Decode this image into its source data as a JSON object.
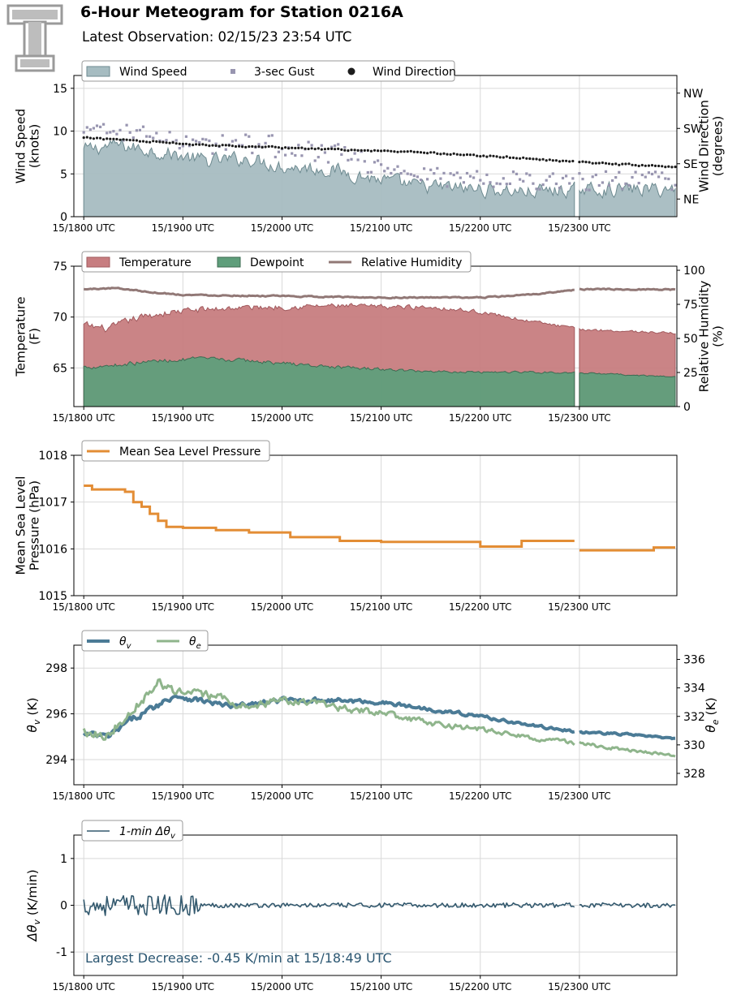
{
  "header": {
    "title": "6-Hour Meteogram for Station 0216A",
    "subtitle": "Latest Observation: 02/15/23 23:54 UTC"
  },
  "colors": {
    "wind_fill": "#a6bcc1",
    "wind_edge": "#6d8a90",
    "gust": "#9895b0",
    "direction": "#1c1c1c",
    "temperature_fill": "#c77d80",
    "temperature_edge": "#a25a5e",
    "dewpoint_fill": "#5f9e7b",
    "dewpoint_edge": "#3d6b52",
    "rh": "#917876",
    "pressure": "#e38d35",
    "theta_v": "#4b7b96",
    "theta_e": "#8fb58c",
    "delta": "#33596e",
    "annotation": "#2b5671"
  },
  "chart_data": [
    {
      "id": "wind",
      "type": "area",
      "x_ticks": [
        "15/1800 UTC",
        "15/1900 UTC",
        "15/2000 UTC",
        "15/2100 UTC",
        "15/2200 UTC",
        "15/2300 UTC"
      ],
      "ylabel": [
        "Wind Speed",
        "(knots)"
      ],
      "ylim": [
        0,
        16.5
      ],
      "yticks": [
        0,
        5,
        10,
        15
      ],
      "ylabel_right": [
        "Wind Direction",
        "(degrees)"
      ],
      "right_ylim": [
        0,
        360
      ],
      "right_ticks": [
        {
          "value": 45,
          "label": "NE"
        },
        {
          "value": 135,
          "label": "SE"
        },
        {
          "value": 225,
          "label": "SW"
        },
        {
          "value": 315,
          "label": "NW"
        }
      ],
      "legend": [
        "Wind Speed",
        "3-sec Gust",
        "Wind Direction"
      ],
      "gap_minutes": [
        298,
        299
      ],
      "series": [
        {
          "name": "Wind Speed",
          "style": "area",
          "anchors": [
            [
              0,
              7.8
            ],
            [
              20,
              8.4
            ],
            [
              45,
              7.6
            ],
            [
              75,
              6.5
            ],
            [
              100,
              6.8
            ],
            [
              120,
              5.9
            ],
            [
              150,
              5.5
            ],
            [
              180,
              4.3
            ],
            [
              200,
              3.6
            ],
            [
              240,
              3.2
            ],
            [
              270,
              2.9
            ],
            [
              300,
              3.2
            ],
            [
              360,
              3.2
            ]
          ],
          "noise": 1.3,
          "min": 0.4
        },
        {
          "name": "3-sec Gust",
          "style": "scatter",
          "anchors": [
            [
              0,
              9.6
            ],
            [
              20,
              10.2
            ],
            [
              45,
              9.2
            ],
            [
              75,
              8.5
            ],
            [
              100,
              8.6
            ],
            [
              120,
              7.8
            ],
            [
              150,
              7.4
            ],
            [
              180,
              5.8
            ],
            [
              200,
              5.1
            ],
            [
              240,
              4.4
            ],
            [
              270,
              4.1
            ],
            [
              300,
              4.2
            ],
            [
              360,
              4.3
            ]
          ],
          "noise": 1.7,
          "every": 2,
          "min": 0.5
        },
        {
          "name": "Wind Direction",
          "style": "dots",
          "axis": "right",
          "anchors": [
            [
              0,
              201
            ],
            [
              20,
              198
            ],
            [
              60,
              186
            ],
            [
              100,
              179
            ],
            [
              150,
              172
            ],
            [
              200,
              164
            ],
            [
              240,
              156
            ],
            [
              270,
              148
            ],
            [
              300,
              139
            ],
            [
              360,
              126
            ]
          ],
          "noise": 3,
          "every": 2
        }
      ]
    },
    {
      "id": "thermo",
      "type": "area",
      "x_ticks": [
        "15/1800 UTC",
        "15/1900 UTC",
        "15/2000 UTC",
        "15/2100 UTC",
        "15/2200 UTC",
        "15/2300 UTC"
      ],
      "ylabel": [
        "Temperature",
        "(F)"
      ],
      "ylim": [
        61.2,
        75
      ],
      "yticks": [
        65,
        70,
        75
      ],
      "ylabel_right": [
        "Relative Humidity",
        "(%)"
      ],
      "right_ylim": [
        0,
        103
      ],
      "right_ticks": [
        {
          "value": 0,
          "label": "0"
        },
        {
          "value": 25,
          "label": "25"
        },
        {
          "value": 50,
          "label": "50"
        },
        {
          "value": 75,
          "label": "75"
        },
        {
          "value": 100,
          "label": "100"
        }
      ],
      "legend": [
        "Temperature",
        "Dewpoint",
        "Relative Humidity"
      ],
      "gap_minutes": [
        298,
        299
      ],
      "series": [
        {
          "name": "Temperature",
          "style": "area",
          "anchors": [
            [
              0,
              69.2
            ],
            [
              15,
              68.8
            ],
            [
              30,
              69.8
            ],
            [
              45,
              70.3
            ],
            [
              60,
              70.6
            ],
            [
              90,
              70.9
            ],
            [
              120,
              71.0
            ],
            [
              150,
              71.1
            ],
            [
              180,
              71.0
            ],
            [
              210,
              71.0
            ],
            [
              240,
              70.5
            ],
            [
              270,
              69.6
            ],
            [
              300,
              68.8
            ],
            [
              330,
              68.6
            ],
            [
              360,
              68.4
            ]
          ],
          "noise": 0.6,
          "noise_end": 0.15
        },
        {
          "name": "Dewpoint",
          "style": "area",
          "anchors": [
            [
              0,
              65.1
            ],
            [
              20,
              65.3
            ],
            [
              45,
              65.7
            ],
            [
              70,
              65.9
            ],
            [
              100,
              65.7
            ],
            [
              150,
              65.1
            ],
            [
              200,
              64.7
            ],
            [
              240,
              64.6
            ],
            [
              270,
              64.6
            ],
            [
              300,
              64.5
            ],
            [
              360,
              64.1
            ]
          ],
          "noise": 0.35,
          "noise_end": 0.1
        },
        {
          "name": "Relative Humidity",
          "style": "line",
          "axis": "right",
          "anchors": [
            [
              0,
              86
            ],
            [
              20,
              87
            ],
            [
              40,
              84
            ],
            [
              60,
              82
            ],
            [
              120,
              81
            ],
            [
              180,
              80
            ],
            [
              240,
              80
            ],
            [
              270,
              82
            ],
            [
              300,
              86
            ],
            [
              360,
              86
            ]
          ],
          "noise": 0.7
        }
      ]
    },
    {
      "id": "pressure",
      "type": "line",
      "x_ticks": [
        "15/1800 UTC",
        "15/1900 UTC",
        "15/2000 UTC",
        "15/2100 UTC",
        "15/2200 UTC",
        "15/2300 UTC"
      ],
      "ylabel": [
        "Mean Sea Level",
        "Pressure (hPa)"
      ],
      "ylim": [
        1015,
        1018
      ],
      "yticks": [
        1015,
        1016,
        1017,
        1018
      ],
      "legend": [
        "Mean Sea Level Pressure"
      ],
      "gap_minutes": [
        298,
        299
      ],
      "series": [
        {
          "name": "Mean Sea Level Pressure",
          "style": "step",
          "steps": [
            [
              0,
              1017.35
            ],
            [
              5,
              1017.27
            ],
            [
              25,
              1017.22
            ],
            [
              30,
              1017.0
            ],
            [
              35,
              1016.9
            ],
            [
              40,
              1016.75
            ],
            [
              45,
              1016.6
            ],
            [
              50,
              1016.47
            ],
            [
              60,
              1016.45
            ],
            [
              80,
              1016.4
            ],
            [
              100,
              1016.35
            ],
            [
              125,
              1016.25
            ],
            [
              155,
              1016.17
            ],
            [
              180,
              1016.15
            ],
            [
              210,
              1016.15
            ],
            [
              240,
              1016.05
            ],
            [
              265,
              1016.17
            ],
            [
              300,
              1015.97
            ],
            [
              345,
              1016.03
            ],
            [
              360,
              1016.0
            ]
          ]
        }
      ]
    },
    {
      "id": "theta",
      "type": "line",
      "x_ticks": [
        "15/1800 UTC",
        "15/1900 UTC",
        "15/2000 UTC",
        "15/2100 UTC",
        "15/2200 UTC",
        "15/2300 UTC"
      ],
      "ylabel": [
        "θv (K)"
      ],
      "ylim": [
        292.9,
        299
      ],
      "yticks": [
        294,
        296,
        298
      ],
      "ylabel_right": [
        "θe (K)"
      ],
      "right_ylim": [
        327.2,
        337
      ],
      "right_ticks": [
        {
          "value": 328,
          "label": "328"
        },
        {
          "value": 330,
          "label": "330"
        },
        {
          "value": 332,
          "label": "332"
        },
        {
          "value": 334,
          "label": "334"
        },
        {
          "value": 336,
          "label": "336"
        }
      ],
      "legend": [
        "θv",
        "θe"
      ],
      "gap_minutes": [
        298,
        299
      ],
      "series": [
        {
          "name": "θv",
          "style": "line",
          "width": 4,
          "anchors": [
            [
              0,
              295.1
            ],
            [
              15,
              295.0
            ],
            [
              30,
              295.8
            ],
            [
              45,
              296.4
            ],
            [
              55,
              296.8
            ],
            [
              70,
              296.6
            ],
            [
              90,
              296.3
            ],
            [
              120,
              296.6
            ],
            [
              150,
              296.6
            ],
            [
              180,
              296.5
            ],
            [
              210,
              296.2
            ],
            [
              240,
              295.9
            ],
            [
              270,
              295.5
            ],
            [
              300,
              295.2
            ],
            [
              330,
              295.1
            ],
            [
              360,
              294.9
            ]
          ],
          "noise": 0.22,
          "noise_end": 0.05
        },
        {
          "name": "θe",
          "style": "line",
          "width": 3,
          "axis": "right",
          "anchors": [
            [
              0,
              331.0
            ],
            [
              15,
              330.7
            ],
            [
              30,
              332.6
            ],
            [
              45,
              334.3
            ],
            [
              60,
              333.6
            ],
            [
              80,
              333.4
            ],
            [
              100,
              332.6
            ],
            [
              120,
              333.2
            ],
            [
              150,
              332.7
            ],
            [
              180,
              332.2
            ],
            [
              210,
              331.5
            ],
            [
              240,
              331.1
            ],
            [
              270,
              330.5
            ],
            [
              300,
              330.1
            ],
            [
              330,
              329.6
            ],
            [
              360,
              329.2
            ]
          ],
          "noise": 0.55,
          "noise_end": 0.15
        }
      ]
    },
    {
      "id": "delta",
      "type": "line",
      "x_ticks": [
        "15/1800 UTC",
        "15/1900 UTC",
        "15/2000 UTC",
        "15/2100 UTC",
        "15/2200 UTC",
        "15/2300 UTC"
      ],
      "ylabel": [
        "Δθv (K/min)"
      ],
      "ylim": [
        -1.5,
        1.5
      ],
      "yticks": [
        -1,
        0,
        1
      ],
      "legend": [
        "1-min Δθv"
      ],
      "annotation": "Largest Decrease: -0.45 K/min at 15/18:49 UTC",
      "gap_minutes": [
        298,
        299
      ],
      "series": [
        {
          "name": "1-min Δθv",
          "style": "line",
          "width": 1.6,
          "anchors": [
            [
              0,
              0
            ],
            [
              360,
              0
            ]
          ],
          "noise": 0.22,
          "noise_decay_at": 70,
          "noise_late": 0.05
        }
      ]
    }
  ]
}
